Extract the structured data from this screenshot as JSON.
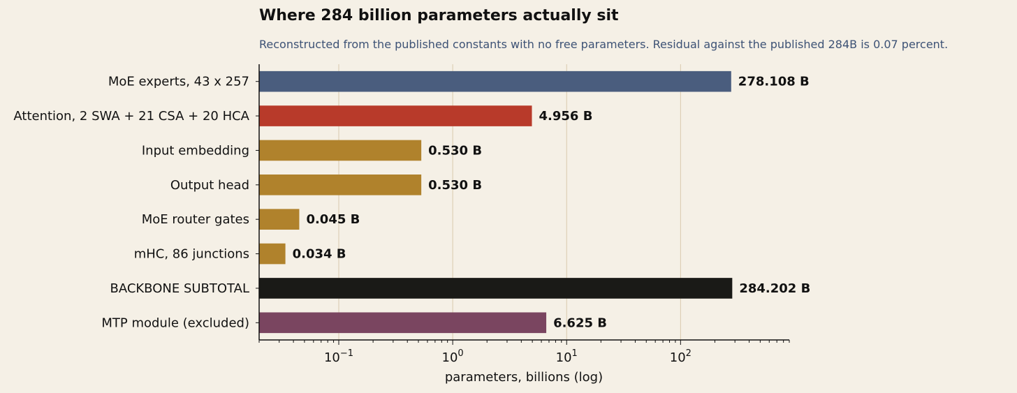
{
  "chart_data": {
    "type": "bar",
    "orientation": "horizontal",
    "title": "Where 284 billion parameters actually sit",
    "subtitle": "Reconstructed from the published constants with no free parameters. Residual against the published 284B is 0.07 percent.",
    "xlabel": "parameters, billions (log)",
    "ylabel": "",
    "xscale": "log",
    "xlim": [
      0.02,
      900
    ],
    "grid": "vertical major",
    "categories": [
      "MoE experts, 43 x 257",
      "Attention, 2 SWA + 21 CSA + 20 HCA",
      "Input embedding",
      "Output head",
      "MoE router gates",
      "mHC, 86 junctions",
      "BACKBONE SUBTOTAL",
      "MTP module (excluded)"
    ],
    "values": [
      278.108,
      4.956,
      0.53,
      0.53,
      0.045,
      0.034,
      284.202,
      6.625
    ],
    "data_labels": [
      "278.108 B",
      "4.956 B",
      "0.530 B",
      "0.530 B",
      "0.045 B",
      "0.034 B",
      "284.202 B",
      "6.625 B"
    ],
    "colors": [
      "#4a5d7e",
      "#b83a2a",
      "#b0822c",
      "#b0822c",
      "#b0822c",
      "#b0822c",
      "#1a1a17",
      "#7a4560"
    ],
    "x_ticks": [
      {
        "value": 0.1,
        "base": "10",
        "exp": "−1"
      },
      {
        "value": 1,
        "base": "10",
        "exp": "0"
      },
      {
        "value": 10,
        "base": "10",
        "exp": "1"
      },
      {
        "value": 100,
        "base": "10",
        "exp": "2"
      }
    ]
  }
}
